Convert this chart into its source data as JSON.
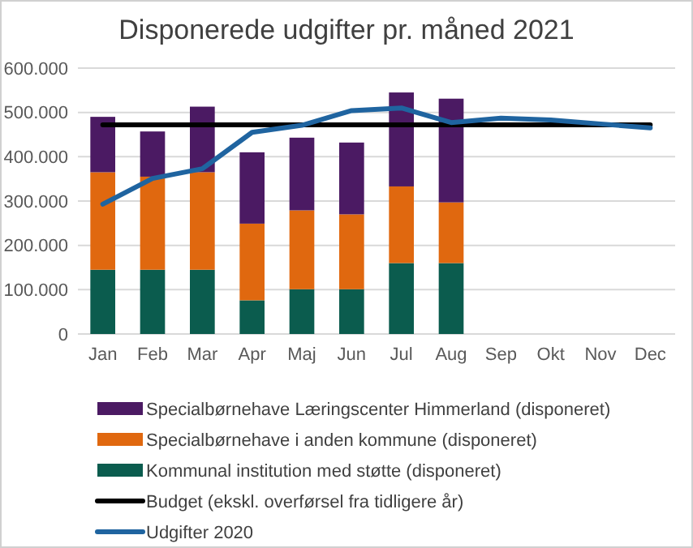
{
  "chart_data": {
    "type": "bar",
    "title": "Disponerede udgifter pr. måned 2021",
    "stacked": true,
    "grid": "y",
    "legend": "bottom",
    "categories": [
      "Jan",
      "Feb",
      "Mar",
      "Apr",
      "Maj",
      "Jun",
      "Jul",
      "Aug",
      "Sep",
      "Okt",
      "Nov",
      "Dec"
    ],
    "ylim": [
      0,
      600000
    ],
    "yticks": [
      {
        "value": 0,
        "label": "0"
      },
      {
        "value": 100000,
        "label": "100.000"
      },
      {
        "value": 200000,
        "label": "200.000"
      },
      {
        "value": 300000,
        "label": "300.000"
      },
      {
        "value": 400000,
        "label": "400.000"
      },
      {
        "value": 500000,
        "label": "500.000"
      },
      {
        "value": 600000,
        "label": "600.000"
      }
    ],
    "series": [
      {
        "name": "Kommunal institution med støtte (disponeret)",
        "color": "#0b5c4e",
        "values": [
          145000,
          145000,
          145000,
          76000,
          101000,
          101000,
          160000,
          160000,
          null,
          null,
          null,
          null
        ]
      },
      {
        "name": "Specialbørnehave i anden kommune (disponeret)",
        "color": "#e0680f",
        "values": [
          220000,
          210000,
          220000,
          173000,
          178000,
          169000,
          173000,
          137000,
          null,
          null,
          null,
          null
        ]
      },
      {
        "name": "Specialbørnehave Læringscenter Himmerland (disponeret)",
        "color": "#4b1a63",
        "values": [
          125000,
          102000,
          148000,
          161000,
          164000,
          162000,
          212000,
          234000,
          null,
          null,
          null,
          null
        ]
      },
      {
        "name": "Budget (ekskl. overførsel fra tidligere år)",
        "type": "line",
        "color": "#000000",
        "values": [
          472000,
          472000,
          472000,
          472000,
          472000,
          472000,
          472000,
          472000,
          472000,
          472000,
          472000,
          472000
        ]
      },
      {
        "name": "Udgifter 2020",
        "type": "line",
        "color": "#1f64a0",
        "values": [
          293000,
          351000,
          373000,
          455000,
          471000,
          504000,
          510000,
          477000,
          487000,
          483000,
          474000,
          465000
        ]
      }
    ]
  }
}
